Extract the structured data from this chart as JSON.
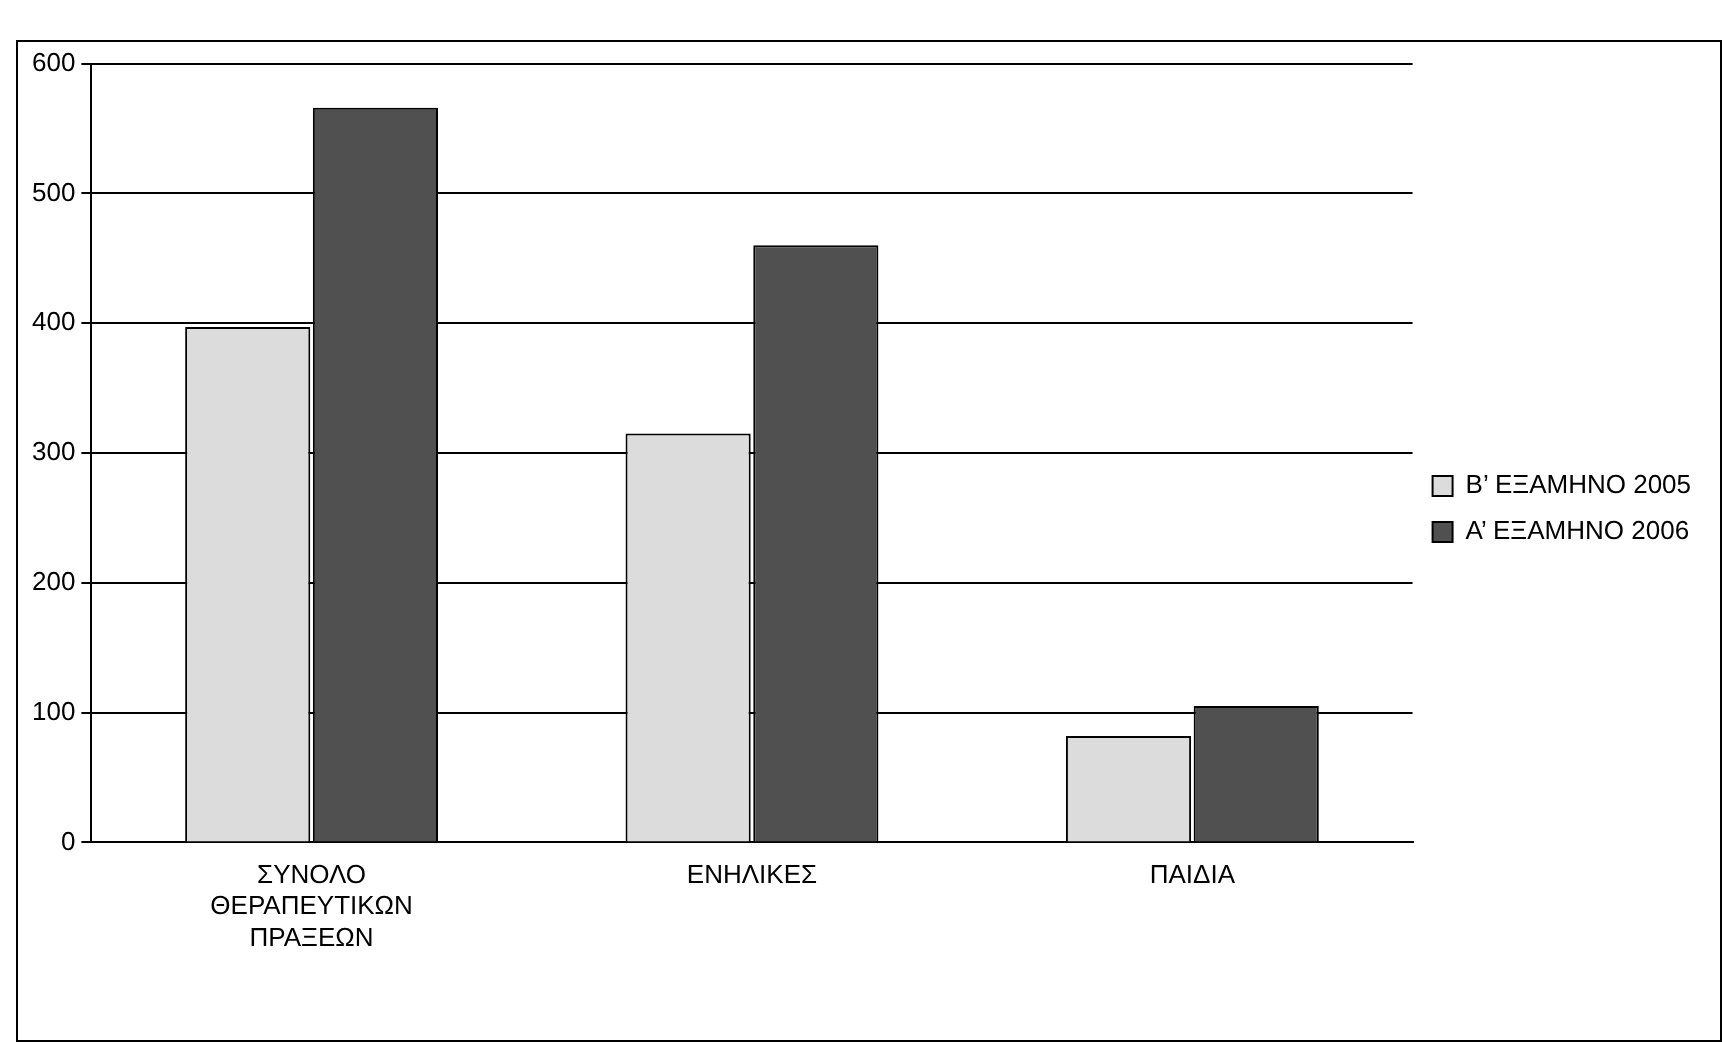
{
  "chart_data": {
    "type": "bar",
    "categories": [
      [
        "ΣΥΝΟΛΟ",
        "ΘΕΡΑΠΕΥΤΙΚΩΝ",
        "ΠΡΑΞΕΩΝ"
      ],
      "ΕΝΗΛΙΚΕΣ",
      "ΠΑΙΔΙΑ"
    ],
    "series": [
      {
        "name": "B’ ΕΞΑΜΗΝΟ 2005",
        "color": "#dcdcdc",
        "values": [
          397,
          315,
          82
        ]
      },
      {
        "name": "A’ ΕΞΑΜΗΝΟ 2006",
        "color": "#505050",
        "values": [
          566,
          460,
          105
        ]
      }
    ],
    "ylim": [
      0,
      600
    ],
    "yticks": [
      0,
      100,
      200,
      300,
      400,
      500,
      600
    ],
    "grid": "y",
    "legend": "right"
  }
}
